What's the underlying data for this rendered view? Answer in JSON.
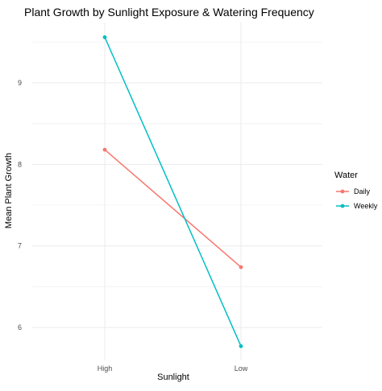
{
  "chart_data": {
    "type": "line",
    "title": "Plant Growth by Sunlight Exposure & Watering Frequency",
    "xlabel": "Sunlight",
    "ylabel": "Mean Plant Growth",
    "categories": [
      "High",
      "Low"
    ],
    "y_ticks": [
      6,
      7,
      8,
      9
    ],
    "ylim": [
      5.7,
      9.6
    ],
    "grid": true,
    "legend_title": "Water",
    "legend_position": "right",
    "series": [
      {
        "name": "Daily",
        "values": [
          8.18,
          6.74
        ],
        "color": "#F8766D"
      },
      {
        "name": "Weekly",
        "values": [
          9.56,
          5.77
        ],
        "color": "#00BFC4"
      }
    ]
  }
}
